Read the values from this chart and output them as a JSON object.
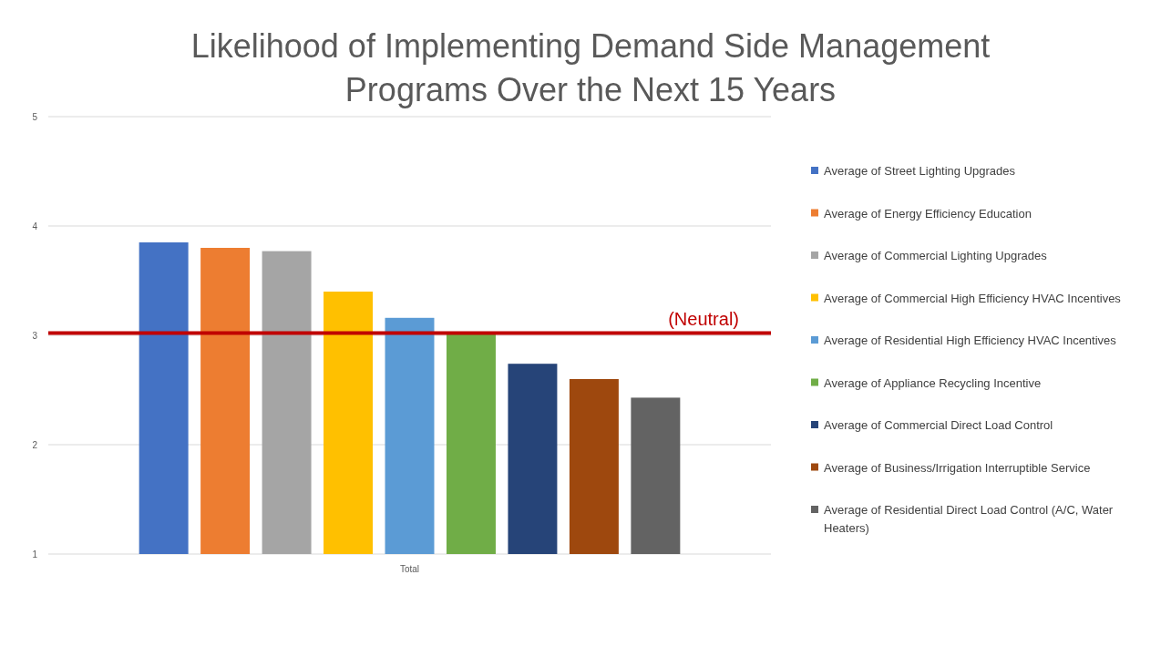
{
  "chart_data": {
    "type": "bar",
    "title": "Likelihood of Implementing Demand Side Management Programs Over the Next 15 Years",
    "categories": [
      "Total"
    ],
    "series": [
      {
        "name": "Average of Street Lighting Upgrades",
        "color": "#4472c4",
        "values": [
          3.85
        ]
      },
      {
        "name": "Average of Energy Efficiency Education",
        "color": "#ed7d31",
        "values": [
          3.8
        ]
      },
      {
        "name": "Average of Commercial Lighting Upgrades",
        "color": "#a5a5a5",
        "values": [
          3.77
        ]
      },
      {
        "name": "Average of Commercial High Efficiency HVAC Incentives",
        "color": "#ffc000",
        "values": [
          3.4
        ]
      },
      {
        "name": "Average of Residential High Efficiency HVAC Incentives",
        "color": "#5b9bd5",
        "values": [
          3.16
        ]
      },
      {
        "name": "Average of Appliance Recycling Incentive",
        "color": "#70ad47",
        "values": [
          3.01
        ]
      },
      {
        "name": "Average of Commercial Direct Load Control",
        "color": "#264478",
        "values": [
          2.74
        ]
      },
      {
        "name": "Average of Business/Irrigation Interruptible Service",
        "color": "#9e480e",
        "values": [
          2.6
        ]
      },
      {
        "name": "Average of Residential Direct Load Control (A/C, Water Heaters)",
        "color": "#636363",
        "values": [
          2.43
        ]
      }
    ],
    "ylim": [
      1,
      5
    ],
    "yticks": [
      1,
      2,
      3,
      4,
      5
    ],
    "grid": "y",
    "legend": "right",
    "ref_lines": [
      {
        "axis": "y",
        "value": 3.02,
        "label": "(Neutral)",
        "color": "#c00000"
      }
    ]
  }
}
